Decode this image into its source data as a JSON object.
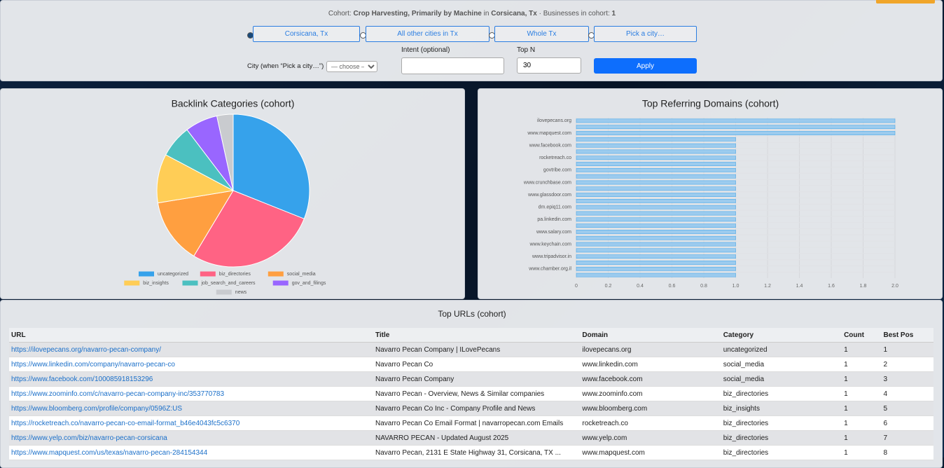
{
  "filters": {
    "cohort_label": "Cohort:",
    "cohort_industry": "Crop Harvesting, Primarily by Machine",
    "in_word": "in",
    "cohort_city": "Corsicana, Tx",
    "businesses_label": "· Businesses in cohort:",
    "businesses_count": 1,
    "scope_options": [
      "Corsicana, Tx",
      "All other cities in Tx",
      "Whole Tx",
      "Pick a city…"
    ],
    "city_label": "City (when “Pick a city…”)",
    "city_placeholder": "— choose —",
    "intent_label": "Intent (optional)",
    "topn_label": "Top N",
    "topn_value": 30,
    "apply": "Apply"
  },
  "chart_data": [
    {
      "type": "pie",
      "title": "Backlink Categories (cohort)",
      "categories": [
        "uncategorized",
        "biz_directories",
        "social_media",
        "biz_insights",
        "job_search_and_careers",
        "gov_and_filings",
        "news"
      ],
      "values": [
        9,
        8,
        4,
        3,
        2,
        2,
        1
      ],
      "colors": [
        "#36a2eb",
        "#ff6384",
        "#ff9f40",
        "#ffcd56",
        "#4bc0c0",
        "#9966ff",
        "#c9cbcf"
      ],
      "legend": "bottom"
    },
    {
      "type": "hbar",
      "title": "Top Referring Domains (cohort)",
      "categories": [
        "ilovepecans.org",
        null,
        "www.mapquest.com",
        null,
        "www.facebook.com",
        null,
        "rocketreach.co",
        null,
        "govtribe.com",
        null,
        "www.crunchbase.com",
        null,
        "www.glassdoor.com",
        null,
        "dm.epiq11.com",
        null,
        "pa.linkedin.com",
        null,
        "www.salary.com",
        null,
        "www.keychain.com",
        null,
        "www.tripadvisor.in",
        null,
        "www.chamber.org.il",
        null
      ],
      "values": [
        2,
        2,
        2,
        1,
        1,
        1,
        1,
        1,
        1,
        1,
        1,
        1,
        1,
        1,
        1,
        1,
        1,
        1,
        1,
        1,
        1,
        1,
        1,
        1,
        1,
        1
      ],
      "color": "#9ccbee",
      "border_color": "#36a2eb",
      "xlim": [
        0,
        2
      ],
      "xticks": [
        0,
        0.2,
        0.4,
        0.6,
        0.8,
        {
          "value": 1,
          "label": "1.0"
        },
        1.2,
        1.4,
        1.6,
        1.8,
        {
          "value": 2,
          "label": "2.0"
        }
      ],
      "grid": true
    }
  ],
  "table": {
    "title": "Top URLs (cohort)",
    "columns": [
      "URL",
      "Title",
      "Domain",
      "Category",
      "Count",
      "Best Pos"
    ],
    "rows": [
      [
        "https://ilovepecans.org/navarro-pecan-company/",
        "Navarro Pecan Company | ILovePecans",
        "ilovepecans.org",
        "uncategorized",
        1,
        1
      ],
      [
        "https://www.linkedin.com/company/navarro-pecan-co",
        "Navarro Pecan Co",
        "www.linkedin.com",
        "social_media",
        1,
        2
      ],
      [
        "https://www.facebook.com/100085918153296",
        "Navarro Pecan Company",
        "www.facebook.com",
        "social_media",
        1,
        3
      ],
      [
        "https://www.zoominfo.com/c/navarro-pecan-company-inc/353770783",
        "Navarro Pecan - Overview, News & Similar companies",
        "www.zoominfo.com",
        "biz_directories",
        1,
        4
      ],
      [
        "https://www.bloomberg.com/profile/company/0596Z:US",
        "Navarro Pecan Co Inc - Company Profile and News",
        "www.bloomberg.com",
        "biz_insights",
        1,
        5
      ],
      [
        "https://rocketreach.co/navarro-pecan-co-email-format_b46e4043fc5c6370",
        "Navarro Pecan Co Email Format | navarropecan.com Emails",
        "rocketreach.co",
        "biz_directories",
        1,
        6
      ],
      [
        "https://www.yelp.com/biz/navarro-pecan-corsicana",
        "NAVARRO PECAN - Updated August 2025",
        "www.yelp.com",
        "biz_directories",
        1,
        7
      ],
      [
        "https://www.mapquest.com/us/texas/navarro-pecan-284154344",
        "Navarro Pecan, 2131 E State Highway 31, Corsicana, TX ...",
        "www.mapquest.com",
        "biz_directories",
        1,
        8
      ]
    ]
  }
}
